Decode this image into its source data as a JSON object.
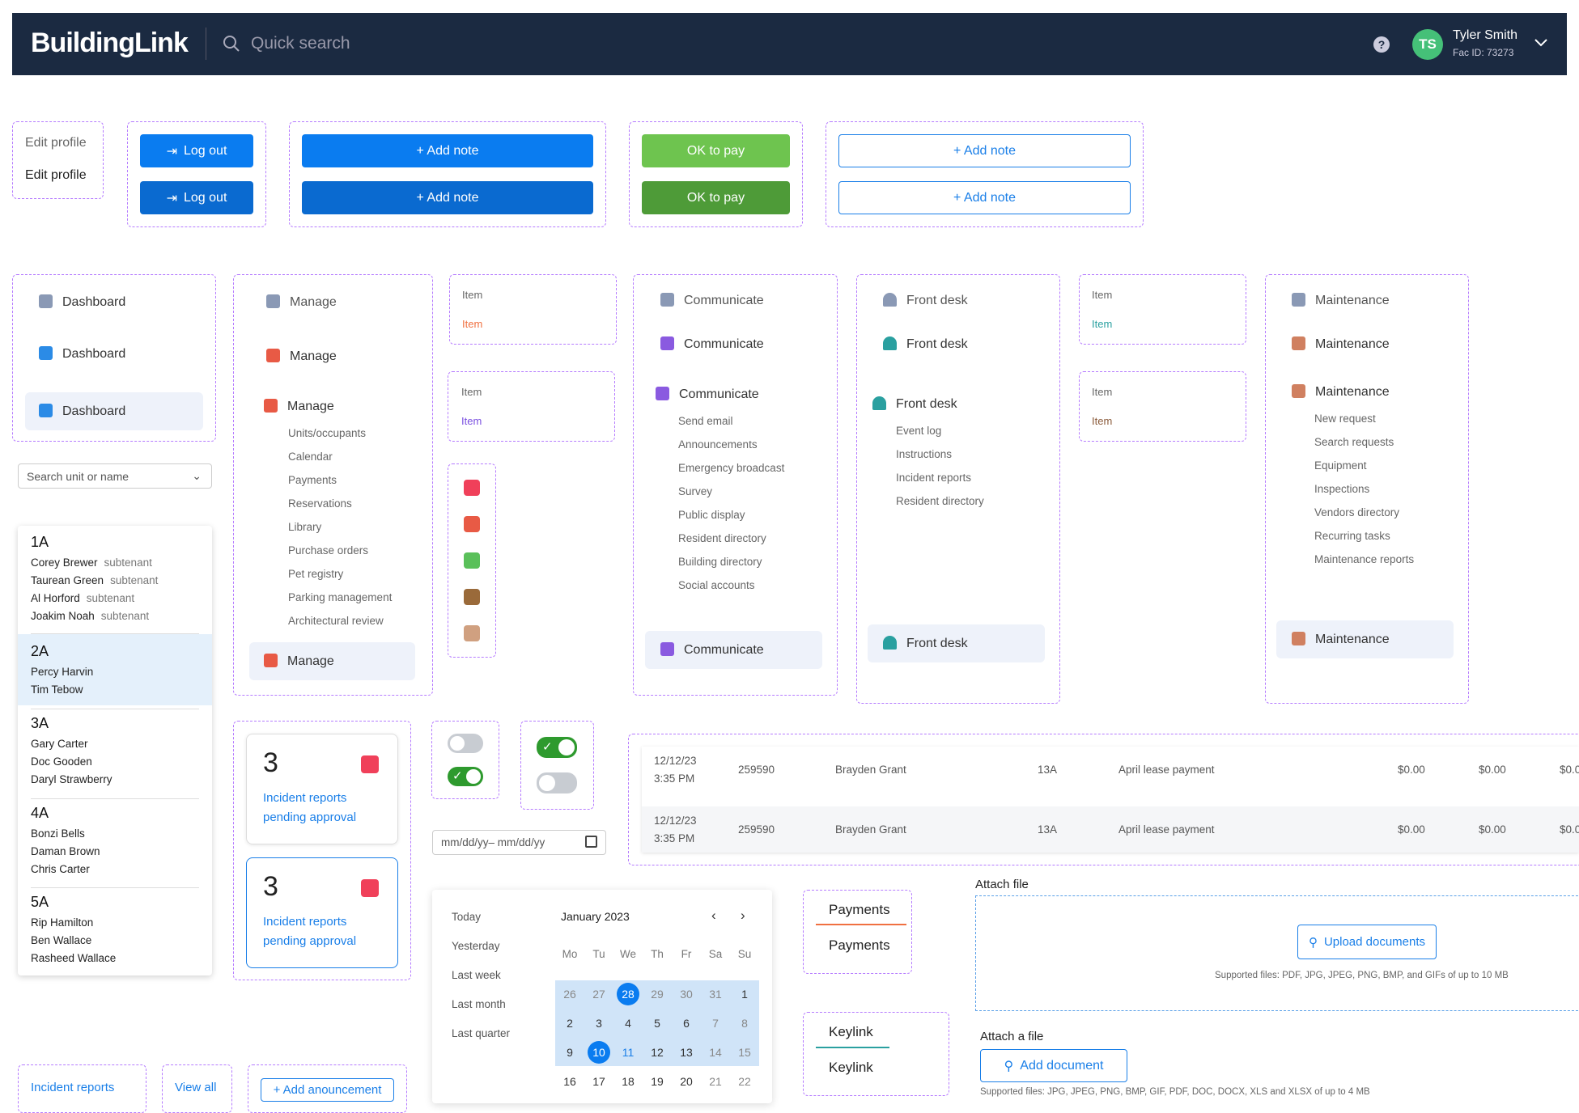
{
  "header": {
    "logo": "BuildingLink",
    "search_placeholder": "Quick search",
    "user_name": "Tyler Smith",
    "user_sub": "Fac ID: 73273",
    "avatar": "TS",
    "help": "?"
  },
  "profile": {
    "edit1": "Edit profile",
    "edit2": "Edit profile"
  },
  "buttons": {
    "logout": "Log out",
    "add_note": "+ Add note",
    "ok_to_pay": "OK to pay"
  },
  "nav": {
    "dashboard": "Dashboard",
    "manage": "Manage",
    "communicate": "Communicate",
    "front_desk": "Front desk",
    "maintenance": "Maintenance",
    "item": "Item"
  },
  "manage_sub": [
    "Units/occupants",
    "Calendar",
    "Payments",
    "Reservations",
    "Library",
    "Purchase orders",
    "Pet registry",
    "Parking management",
    "Architectural review"
  ],
  "communicate_sub": [
    "Send email",
    "Announcements",
    "Emergency broadcast",
    "Survey",
    "Public display",
    "Resident directory",
    "Building directory",
    "Social accounts"
  ],
  "frontdesk_sub": [
    "Event log",
    "Instructions",
    "Incident reports",
    "Resident directory"
  ],
  "maintenance_sub": [
    "New request",
    "Search requests",
    "Equipment",
    "Inspections",
    "Vendors directory",
    "Recurring tasks",
    "Maintenance reports"
  ],
  "unit_search": "Search unit or name",
  "units": [
    {
      "unit": "1A",
      "people": [
        [
          "Corey Brewer",
          "subtenant"
        ],
        [
          "Taurean Green",
          "subtenant"
        ],
        [
          "Al Horford",
          "subtenant"
        ],
        [
          "Joakim Noah",
          "subtenant"
        ]
      ]
    },
    {
      "unit": "2A",
      "people": [
        [
          "Percy Harvin",
          ""
        ],
        [
          "Tim Tebow",
          ""
        ]
      ]
    },
    {
      "unit": "3A",
      "people": [
        [
          "Gary Carter",
          ""
        ],
        [
          "Doc Gooden",
          ""
        ],
        [
          "Daryl Strawberry",
          ""
        ]
      ]
    },
    {
      "unit": "4A",
      "people": [
        [
          "Bonzi Bells",
          ""
        ],
        [
          "Daman Brown",
          ""
        ],
        [
          "Chris Carter",
          ""
        ]
      ]
    },
    {
      "unit": "5A",
      "people": [
        [
          "Rip Hamilton",
          ""
        ],
        [
          "Ben Wallace",
          ""
        ],
        [
          "Rasheed Wallace",
          ""
        ]
      ]
    }
  ],
  "incident": {
    "count": "3",
    "label1": "Incident reports",
    "label2": "pending approval"
  },
  "bottom": {
    "incident_reports": "Incident reports",
    "view_all": "View all",
    "add_announcement": "+ Add anouncement"
  },
  "date_input": "mm/dd/yy– mm/dd/yy",
  "payments_rows": [
    {
      "date": "12/12/23",
      "time": "3:35 PM",
      "id": "259590",
      "name": "Brayden Grant",
      "unit": "13A",
      "desc": "April lease payment",
      "a": "$0.00",
      "b": "$0.00",
      "c": "$0.0"
    },
    {
      "date": "12/12/23",
      "time": "3:35 PM",
      "id": "259590",
      "name": "Brayden Grant",
      "unit": "13A",
      "desc": "April lease payment",
      "a": "$0.00",
      "b": "$0.00",
      "c": "$0.0"
    }
  ],
  "calendar": {
    "presets": [
      "Today",
      "Yesterday",
      "Last week",
      "Last month",
      "Last quarter"
    ],
    "month": "January 2023",
    "dow": [
      "Mo",
      "Tu",
      "We",
      "Th",
      "Fr",
      "Sa",
      "Su"
    ],
    "weeks": [
      [
        "26",
        "27",
        "28",
        "29",
        "30",
        "31",
        "1"
      ],
      [
        "2",
        "3",
        "4",
        "5",
        "6",
        "7",
        "8"
      ],
      [
        "9",
        "10",
        "11",
        "12",
        "13",
        "14",
        "15"
      ],
      [
        "16",
        "17",
        "18",
        "19",
        "20",
        "21",
        "22"
      ]
    ]
  },
  "tabs": {
    "payments": "Payments",
    "keylink": "Keylink"
  },
  "attach": {
    "title": "Attach file",
    "upload": "Upload documents",
    "supported": "Supported files: PDF, JPG, JPEG, PNG, BMP, and GIFs of up to 10 MB",
    "title2": "Attach a file",
    "add_doc": "Add document",
    "supported2": "Supported files: JPG, JPEG, PNG, BMP, GIF, PDF, DOC, DOCX, XLS and XLSX of up to 4 MB"
  },
  "colors": {
    "navy": "#1b2a41",
    "blue": "#0a7cf0",
    "green": "#6ec44f",
    "purple_dash": "#b57bff"
  }
}
